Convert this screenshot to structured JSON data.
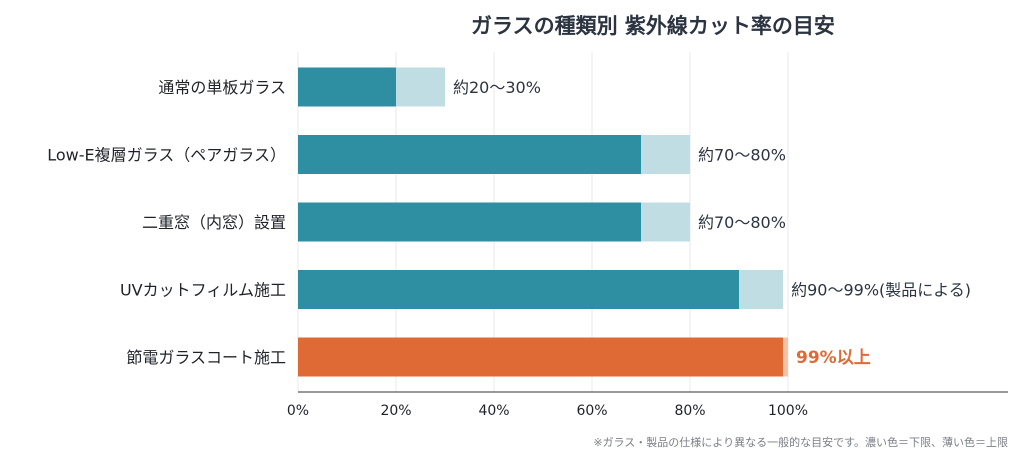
{
  "chart_data": {
    "type": "bar",
    "orientation": "horizontal",
    "stacked": true,
    "title": "ガラスの種類別 紫外線カット率の目安",
    "categories": [
      "通常の単板ガラス",
      "Low-E複層ガラス（ペアガラス）",
      "二重窓（内窓）設置",
      "UVカットフィルム施工",
      "節電ガラスコート施工"
    ],
    "series": [
      {
        "values": [
          20,
          70,
          70,
          90,
          99
        ]
      },
      {
        "values": [
          10,
          10,
          10,
          9,
          1
        ]
      }
    ],
    "value_labels": [
      "約20〜30%",
      "約70〜80%",
      "約70〜80%",
      "約90〜99%(製品による)",
      "99%以上"
    ],
    "highlight_index": 4,
    "xlim": [
      0,
      100
    ],
    "xticks": [
      "0%",
      "20%",
      "40%",
      "60%",
      "80%",
      "100%"
    ],
    "xlabel": "",
    "ylabel": "",
    "grid": true,
    "legend": "none",
    "colors": {
      "low": "#2e8fa3",
      "high": "#c0dde3",
      "highlight_low": "#e06a35",
      "highlight_high": "#f3c3a8",
      "axis": "#333333",
      "grid": "#e9eaec"
    },
    "footnote": "※ガラス・製品の仕様により異なる一般的な目安です。濃い色＝下限、薄い色＝上限"
  }
}
